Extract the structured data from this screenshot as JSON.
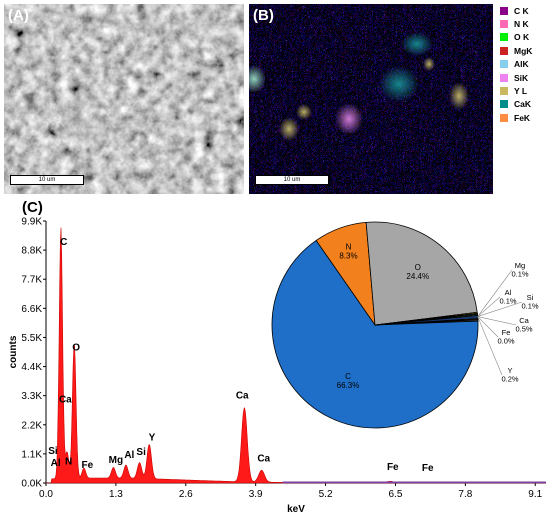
{
  "panels": {
    "a_label": "(A)",
    "b_label": "(B)",
    "c_label": "(C)",
    "scale_a": "10 um",
    "scale_b": "10 um"
  },
  "legend": [
    {
      "label": "C K",
      "color": "#8b008b"
    },
    {
      "label": "N K",
      "color": "#ff69b4"
    },
    {
      "label": "O K",
      "color": "#00ee00"
    },
    {
      "label": "MgK",
      "color": "#cc2222"
    },
    {
      "label": "AlK",
      "color": "#87ceeb"
    },
    {
      "label": "SiK",
      "color": "#ee82ee"
    },
    {
      "label": "Y L",
      "color": "#c8b860"
    },
    {
      "label": "CaK",
      "color": "#008b8b"
    },
    {
      "label": "FeK",
      "color": "#ff8c42"
    }
  ],
  "chart_data": [
    {
      "type": "area",
      "xlabel": "keV",
      "ylabel": "counts",
      "xlim": [
        0.0,
        9.3
      ],
      "ylim": [
        0,
        9900
      ],
      "x_ticks": [
        "0.0",
        "1.3",
        "2.6",
        "3.9",
        "5.2",
        "6.5",
        "7.8",
        "9.1"
      ],
      "y_ticks": [
        "0.0K",
        "1.1K",
        "2.2K",
        "3.3K",
        "4.4K",
        "5.5K",
        "6.6K",
        "7.7K",
        "8.8K",
        "9.9K"
      ],
      "peaks": [
        {
          "element": "C",
          "kev": 0.277,
          "counts": 9500
        },
        {
          "element": "N",
          "kev": 0.392,
          "counts": 1000
        },
        {
          "element": "O",
          "kev": 0.525,
          "counts": 5100
        },
        {
          "element": "Fe",
          "kev": 0.705,
          "counts": 380
        },
        {
          "element": "Mg",
          "kev": 1.254,
          "counts": 400
        },
        {
          "element": "Al",
          "kev": 1.487,
          "counts": 500
        },
        {
          "element": "Si",
          "kev": 1.74,
          "counts": 600
        },
        {
          "element": "Y",
          "kev": 1.92,
          "counts": 1300
        },
        {
          "element": "Ca",
          "kev": 3.69,
          "counts": 2800
        },
        {
          "element": "Ca",
          "kev": 4.01,
          "counts": 450
        },
        {
          "element": "Fe",
          "kev": 6.4,
          "counts": 60
        },
        {
          "element": "Fe",
          "kev": 7.06,
          "counts": 40
        }
      ],
      "labels": [
        {
          "text": "C",
          "kev": 0.33,
          "counts": 9000
        },
        {
          "text": "O",
          "kev": 0.56,
          "counts": 5000
        },
        {
          "text": "Ca",
          "kev": 0.36,
          "counts": 3050
        },
        {
          "text": "Si",
          "kev": 0.13,
          "counts": 1100
        },
        {
          "text": "Al",
          "kev": 0.18,
          "counts": 650
        },
        {
          "text": "N",
          "kev": 0.42,
          "counts": 700
        },
        {
          "text": "Fe",
          "kev": 0.77,
          "counts": 570
        },
        {
          "text": "Mg",
          "kev": 1.3,
          "counts": 750
        },
        {
          "text": "Al",
          "kev": 1.55,
          "counts": 950
        },
        {
          "text": "Si",
          "kev": 1.77,
          "counts": 1050
        },
        {
          "text": "Y",
          "kev": 1.97,
          "counts": 1600
        },
        {
          "text": "Ca",
          "kev": 3.65,
          "counts": 3200
        },
        {
          "text": "Ca",
          "kev": 4.05,
          "counts": 820
        },
        {
          "text": "Fe",
          "kev": 6.45,
          "counts": 500
        },
        {
          "text": "Fe",
          "kev": 7.1,
          "counts": 450
        }
      ]
    },
    {
      "type": "pie",
      "slices": [
        {
          "label": "C",
          "value": 66.3,
          "text": "66.3%",
          "color": "#1f6fc8"
        },
        {
          "label": "N",
          "value": 8.3,
          "text": "8.3%",
          "color": "#f2811d"
        },
        {
          "label": "O",
          "value": 24.4,
          "text": "24.4%",
          "color": "#a6a6a6"
        },
        {
          "label": "Mg",
          "value": 0.1,
          "text": "0.1%",
          "color": "#f5c518"
        },
        {
          "label": "Al",
          "value": 0.1,
          "text": "0.1%",
          "color": "#2e5f96"
        },
        {
          "label": "Si",
          "value": 0.1,
          "text": "0.1%",
          "color": "#6aa84f"
        },
        {
          "label": "Ca",
          "value": 0.5,
          "text": "0.5%",
          "color": "#1a3a6e"
        },
        {
          "label": "Fe",
          "value": 0.0,
          "text": "0.0%",
          "color": "#8a4b16"
        },
        {
          "label": "Y",
          "value": 0.2,
          "text": "0.2%",
          "color": "#666666"
        }
      ]
    }
  ]
}
